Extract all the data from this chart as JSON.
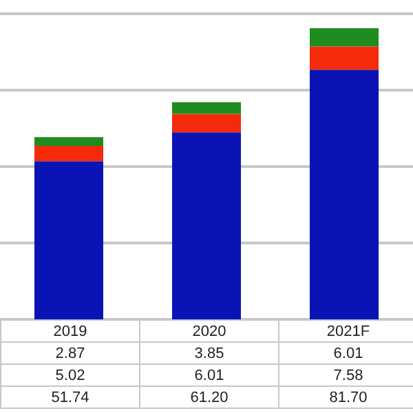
{
  "chart_data": {
    "type": "bar",
    "stacked": true,
    "categories": [
      "2019",
      "2020",
      "2021F"
    ],
    "series": [
      {
        "color": "#0a14b4",
        "values": [
          51.74,
          61.2,
          81.7
        ],
        "value_labels": [
          "51.74",
          "61.20",
          "81.70"
        ]
      },
      {
        "color": "#f52a0a",
        "values": [
          5.02,
          6.01,
          7.58
        ],
        "value_labels": [
          "5.02",
          "6.01",
          "7.58"
        ]
      },
      {
        "color": "#1e8c1e",
        "values": [
          2.87,
          3.85,
          6.01
        ],
        "value_labels": [
          "2.87",
          "3.85",
          "6.01"
        ]
      }
    ],
    "ylim": [
      0,
      100
    ],
    "yticks": [
      {
        "value": 0,
        "label": null
      },
      {
        "value": 25,
        "label": null
      },
      {
        "value": 50,
        "label": null
      },
      {
        "value": 75,
        "label": null
      },
      {
        "value": 100,
        "label": null
      }
    ],
    "grid": "y",
    "tick_labels": "x",
    "legend": false
  }
}
